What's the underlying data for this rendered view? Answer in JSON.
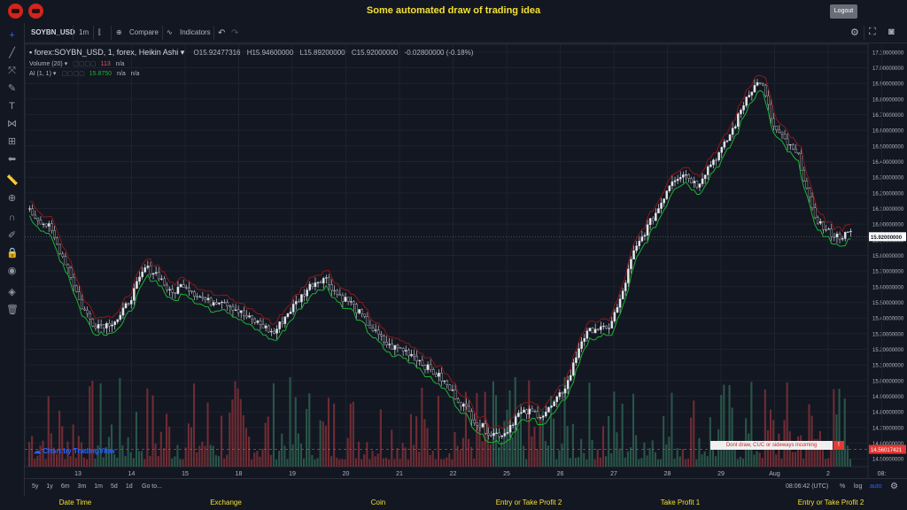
{
  "header": {
    "title": "Some automated draw of trading idea",
    "logout_label": "Logout"
  },
  "toolbar": {
    "symbol": "SOYBN_USD",
    "interval": "1m",
    "compare_label": "Compare",
    "indicators_label": "Indicators"
  },
  "legend": {
    "symbol_line": "forex:SOYBN_USD, 1, forex, Heikin Ashi",
    "open": "O15.92477316",
    "high": "H15.94600000",
    "low": "L15.89200000",
    "close": "C15.92000000",
    "change": "-0.02800000 (-0.18%)",
    "volume_label": "Volume (20)",
    "volume_value": "113",
    "volume_na": "n/a",
    "ai_label": "AI (1, 1)",
    "ai_value": "15.8750",
    "ai_na1": "n/a",
    "ai_na2": "n/a"
  },
  "watermark": "Chart by TradingView",
  "annotation": {
    "text": "Dont draw, CUC or sideways incoming",
    "badge": "!"
  },
  "bottom_bar": {
    "ranges": [
      "5y",
      "1y",
      "6m",
      "3m",
      "1m",
      "5d",
      "1d"
    ],
    "goto": "Go to...",
    "time": "08:06:42 (UTC)",
    "percent": "%",
    "log": "log",
    "auto": "auto"
  },
  "footer": {
    "items": [
      "Date Time",
      "Exchange",
      "Coin",
      "Entry or Take Profit 2",
      "Take Profit 1",
      "Entry or Take Profit 2"
    ]
  },
  "colors": {
    "up": "#26a69a",
    "down": "#ef5350",
    "green_line": "#1db232",
    "red_line": "#8b1a1a",
    "price_label": "#e53935"
  },
  "chart_data": {
    "type": "candlestick",
    "xlabel": "",
    "ylabel": "",
    "x_ticks": [
      "13",
      "14",
      "15",
      "18",
      "19",
      "20",
      "21",
      "22",
      "25",
      "26",
      "27",
      "28",
      "29",
      "Aug",
      "2",
      "08:"
    ],
    "y_ticks": [
      "17.10000000",
      "17.00000000",
      "16.90000000",
      "16.80000000",
      "16.70000000",
      "16.60000000",
      "16.50000000",
      "16.40000000",
      "16.30000000",
      "16.20000000",
      "16.10000000",
      "16.00000000",
      "15.90000000",
      "15.80000000",
      "15.70000000",
      "15.60000000",
      "15.50000000",
      "15.40000000",
      "15.30000000",
      "15.20000000",
      "15.10000000",
      "15.00000000",
      "14.90000000",
      "14.80000000",
      "14.70000000",
      "14.60000000",
      "14.50000000"
    ],
    "ylim": [
      14.45,
      17.15
    ],
    "last_price": "15.92000000",
    "red_price_label": "14.56017421",
    "close_path": [
      [
        0,
        16.08
      ],
      [
        3,
        15.98
      ],
      [
        6,
        15.72
      ],
      [
        8,
        15.48
      ],
      [
        10,
        15.36
      ],
      [
        12,
        15.36
      ],
      [
        14,
        15.4
      ],
      [
        16,
        15.55
      ],
      [
        18,
        15.72
      ],
      [
        20,
        15.68
      ],
      [
        22,
        15.55
      ],
      [
        24,
        15.62
      ],
      [
        26,
        15.55
      ],
      [
        28,
        15.5
      ],
      [
        30,
        15.52
      ],
      [
        32,
        15.46
      ],
      [
        34,
        15.4
      ],
      [
        36,
        15.36
      ],
      [
        38,
        15.3
      ],
      [
        40,
        15.42
      ],
      [
        42,
        15.52
      ],
      [
        44,
        15.62
      ],
      [
        46,
        15.66
      ],
      [
        48,
        15.55
      ],
      [
        50,
        15.5
      ],
      [
        52,
        15.4
      ],
      [
        54,
        15.3
      ],
      [
        56,
        15.22
      ],
      [
        58,
        15.2
      ],
      [
        60,
        15.16
      ],
      [
        62,
        15.08
      ],
      [
        64,
        15.02
      ],
      [
        66,
        14.92
      ],
      [
        68,
        14.82
      ],
      [
        70,
        14.72
      ],
      [
        72,
        14.66
      ],
      [
        74,
        14.66
      ],
      [
        76,
        14.78
      ],
      [
        78,
        14.8
      ],
      [
        80,
        14.78
      ],
      [
        82,
        14.86
      ],
      [
        84,
        15.0
      ],
      [
        86,
        15.26
      ],
      [
        88,
        15.34
      ],
      [
        90,
        15.32
      ],
      [
        92,
        15.5
      ],
      [
        94,
        15.8
      ],
      [
        96,
        15.96
      ],
      [
        98,
        16.1
      ],
      [
        100,
        16.28
      ],
      [
        102,
        16.33
      ],
      [
        104,
        16.25
      ],
      [
        106,
        16.38
      ],
      [
        108,
        16.48
      ],
      [
        110,
        16.64
      ],
      [
        112,
        16.84
      ],
      [
        114,
        16.92
      ],
      [
        116,
        16.62
      ],
      [
        118,
        16.52
      ],
      [
        120,
        16.42
      ],
      [
        122,
        16.08
      ],
      [
        124,
        15.96
      ],
      [
        126,
        15.92
      ],
      [
        128,
        15.94
      ]
    ],
    "volume_series": [
      {
        "name": "up",
        "values": []
      },
      {
        "name": "down",
        "values": []
      }
    ]
  }
}
